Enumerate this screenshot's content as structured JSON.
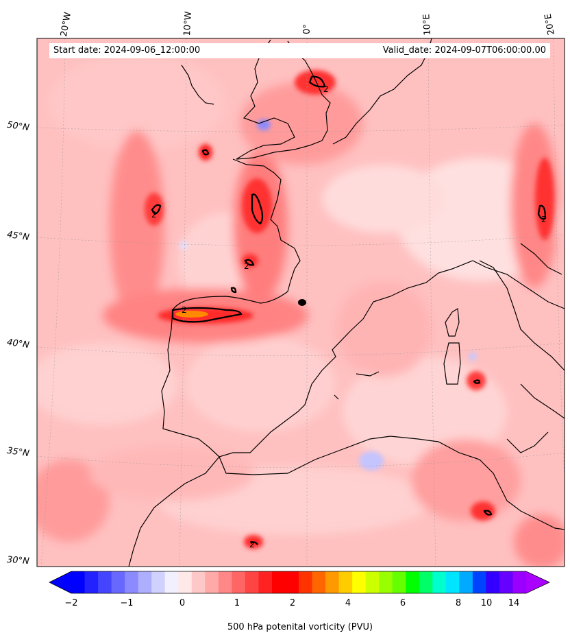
{
  "map": {
    "start_date": "Start date: 2024-09-06_12:00:00",
    "valid_date": "Valid_date: 2024-09-07T06:00:00.00",
    "lon_labels": [
      "20°W",
      "10°W",
      "0°",
      "10°E",
      "20°E"
    ],
    "lat_labels": [
      "50°N",
      "45°N",
      "40°N",
      "35°N",
      "30°N"
    ],
    "contour_labels": [
      "2",
      "2",
      "2",
      "2",
      "2",
      "2"
    ],
    "field": "500 hPa potential vorticity",
    "contour_level_pvu": 2
  },
  "colorbar": {
    "label": "500 hPa potenital vorticity (PVU)",
    "tick_labels": [
      "−2",
      "−1",
      "0",
      "1",
      "2",
      "4",
      "6",
      "8",
      "10",
      "14"
    ],
    "colors": [
      "#0000ff",
      "#2222ff",
      "#4545ff",
      "#6868ff",
      "#8b8bff",
      "#aeaeff",
      "#d1d1ff",
      "#f0f0ff",
      "#ffe8e8",
      "#ffc8c8",
      "#ffa9a9",
      "#ff8787",
      "#ff6565",
      "#ff4444",
      "#ff2222",
      "#ff0000",
      "#ff0000",
      "#ff3300",
      "#ff6600",
      "#ff9900",
      "#ffcc00",
      "#ffff00",
      "#ccff00",
      "#99ff00",
      "#66ff00",
      "#00ff00",
      "#00ff66",
      "#00ffcc",
      "#00e5ff",
      "#00aaff",
      "#0044ff",
      "#3300ff",
      "#6600ff",
      "#9900ff"
    ],
    "extend_low_color": "#0000ff",
    "extend_high_color": "#aa00ff"
  }
}
